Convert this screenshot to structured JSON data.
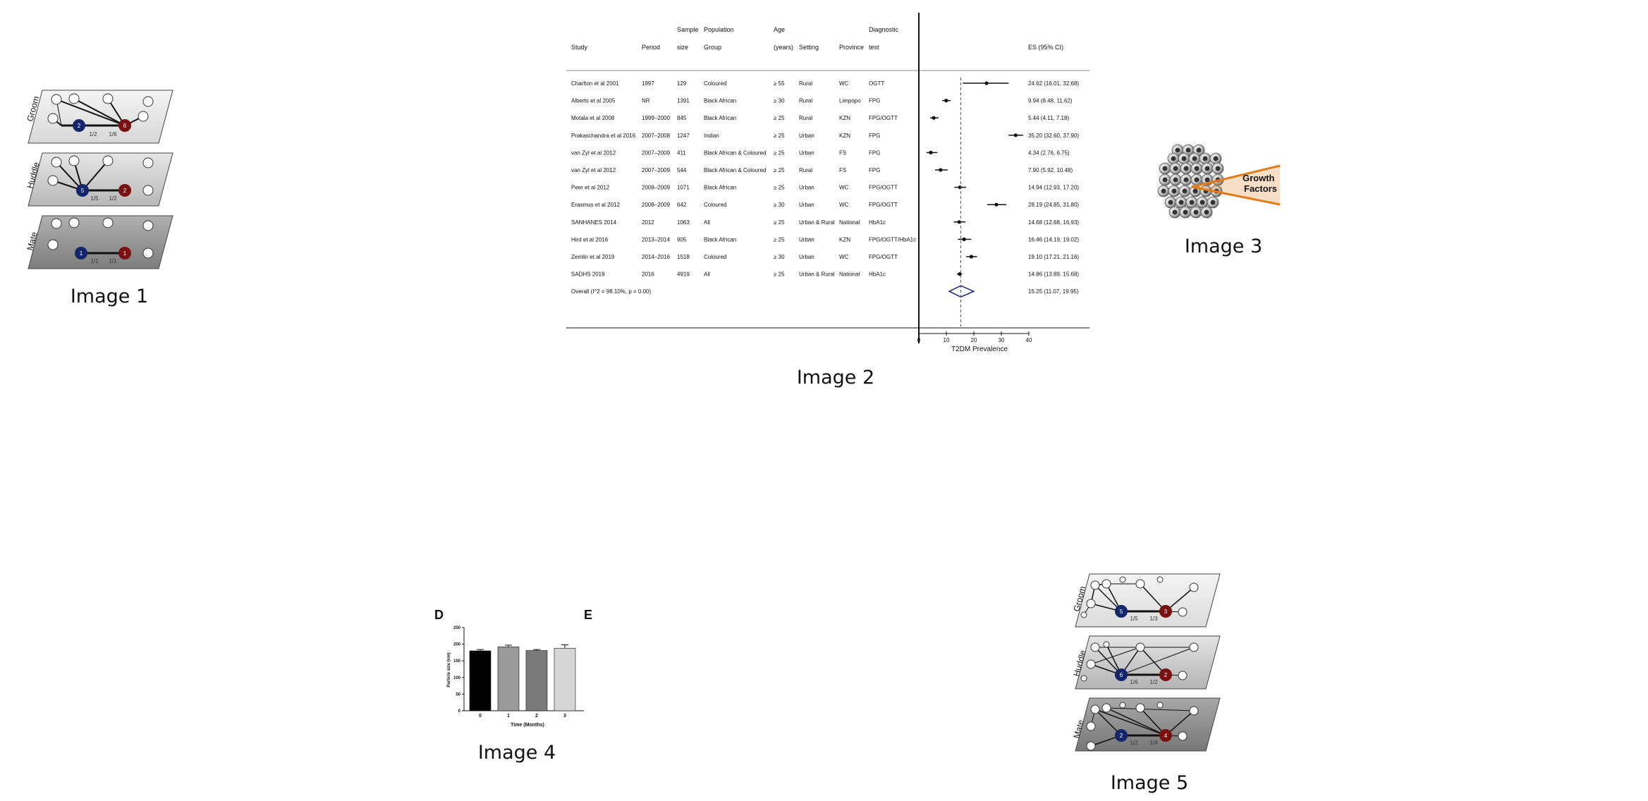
{
  "captions": [
    "Image 1",
    "Image 2",
    "Image 3",
    "Image 4",
    "Image 5"
  ],
  "image1": {
    "layers": [
      {
        "label": "Groom",
        "blue": "2",
        "red": "6",
        "blue_frac": "1/2",
        "red_frac": "1/6"
      },
      {
        "label": "Huddle",
        "blue": "5",
        "red": "2",
        "blue_frac": "1/5",
        "red_frac": "1/2"
      },
      {
        "label": "Mate",
        "blue": "1",
        "red": "1",
        "blue_frac": "1/1",
        "red_frac": "1/1"
      }
    ]
  },
  "forest": {
    "headers": {
      "study": "Study",
      "period": "Period",
      "sample_1": "Sample",
      "sample_2": "size",
      "pop_1": "Population",
      "pop_2": "Group",
      "age_1": "Age",
      "age_2": "(years)",
      "setting": "Setting",
      "province": "Province",
      "diag_1": "Diagnostic",
      "diag_2": "test",
      "es": "ES (95% CI)"
    },
    "rows": [
      {
        "study": "Charlton et al 2001",
        "period": "1997",
        "size": "129",
        "group": "Coloured",
        "age": "≥ 55",
        "setting": "Rural",
        "province": "WC",
        "test": "OGTT",
        "es": "24.62 (16.01, 32.68)",
        "est": 24.62,
        "lo": 16.01,
        "hi": 32.68
      },
      {
        "study": "Alberts et al 2005",
        "period": "NR",
        "size": "1391",
        "group": "Black African",
        "age": "≥ 30",
        "setting": "Rural",
        "province": "Limpopo",
        "test": "FPG",
        "es": "9.94 (8.48, 11.62)",
        "est": 9.94,
        "lo": 8.48,
        "hi": 11.62
      },
      {
        "study": "Motala et al 2008",
        "period": "1999–2000",
        "size": "845",
        "group": "Black African",
        "age": "≥ 25",
        "setting": "Rural",
        "province": "KZN",
        "test": "FPG/OGTT",
        "es": "5.44 (4.11, 7.18)",
        "est": 5.44,
        "lo": 4.11,
        "hi": 7.18
      },
      {
        "study": "Prakaschandra et al 2016",
        "period": "2007–2008",
        "size": "1247",
        "group": "Indian",
        "age": "≥ 25",
        "setting": "Urban",
        "province": "KZN",
        "test": "FPG",
        "es": "35.20 (32.60, 37.90)",
        "est": 35.2,
        "lo": 32.6,
        "hi": 37.9
      },
      {
        "study": "van Zyl et al 2012",
        "period": "2007–2009",
        "size": "411",
        "group": "Black African & Coloured",
        "age": "≥ 25",
        "setting": "Urban",
        "province": "FS",
        "test": "FPG",
        "es": "4.34 (2.76, 6.75)",
        "est": 4.34,
        "lo": 2.76,
        "hi": 6.75
      },
      {
        "study": "van Zyl et al 2012",
        "period": "2007–2009",
        "size": "544",
        "group": "Black African & Coloured",
        "age": "≥ 25",
        "setting": "Rural",
        "province": "FS",
        "test": "FPG",
        "es": "7.90 (5.92, 10.48)",
        "est": 7.9,
        "lo": 5.92,
        "hi": 10.48
      },
      {
        "study": "Peer et al 2012",
        "period": "2008–2009",
        "size": "1071",
        "group": "Black African",
        "age": "≥ 25",
        "setting": "Urban",
        "province": "WC",
        "test": "FPG/OGTT",
        "es": "14.94 (12.93, 17.20)",
        "est": 14.94,
        "lo": 12.93,
        "hi": 17.2
      },
      {
        "study": "Erasmus et al 2012",
        "period": "2008–2009",
        "size": "642",
        "group": "Coloured",
        "age": "≥ 30",
        "setting": "Urban",
        "province": "WC",
        "test": "FPG/OGTT",
        "es": "28.19 (24.85, 31.80)",
        "est": 28.19,
        "lo": 24.85,
        "hi": 31.8
      },
      {
        "study": "SANHANES 2014",
        "period": "2012",
        "size": "1063",
        "group": "All",
        "age": "≥ 25",
        "setting": "Urban & Rural",
        "province": "National",
        "test": "HbA1c",
        "es": "14.68 (12.68, 16.93)",
        "est": 14.68,
        "lo": 12.68,
        "hi": 16.93
      },
      {
        "study": "Hird et al 2016",
        "period": "2013–2014",
        "size": "905",
        "group": "Black African",
        "age": "≥ 25",
        "setting": "Urban",
        "province": "KZN",
        "test": "FPG/OGTT/HbA1c",
        "es": "16.46 (14.19, 19.02)",
        "est": 16.46,
        "lo": 14.19,
        "hi": 19.02
      },
      {
        "study": "Zemlin et al 2019",
        "period": "2014–2016",
        "size": "1518",
        "group": "Coloured",
        "age": "≥ 30",
        "setting": "Urban",
        "province": "WC",
        "test": "FPG/OGTT",
        "es": "19.10 (17.21, 21.16)",
        "est": 19.1,
        "lo": 17.21,
        "hi": 21.16
      },
      {
        "study": "SADHS 2019",
        "period": "2016",
        "size": "4919",
        "group": "All",
        "age": "≥ 25",
        "setting": "Urban & Rural",
        "province": "National",
        "test": "HbA1c",
        "es": "14.86 (13.89, 15.68)",
        "est": 14.86,
        "lo": 13.89,
        "hi": 15.68
      }
    ],
    "overall": {
      "label": "Overall  (I^2 = 98.10%, p = 0.00)",
      "es": "15.25 (11.07, 19.95)",
      "est": 15.25,
      "lo": 11.07,
      "hi": 19.95
    },
    "xticks": [
      0,
      10,
      20,
      30,
      40
    ],
    "xlabel": "T2DM Prevalence"
  },
  "image3": {
    "label_1": "Growth",
    "label_2": "Factors",
    "accent": "#e07b1a"
  },
  "chart_data": {
    "type": "bar",
    "categories": [
      "0",
      "1",
      "2",
      "3"
    ],
    "values": [
      180,
      192,
      181,
      188
    ],
    "errors": [
      4,
      5,
      3,
      10
    ],
    "colors": [
      "#000000",
      "#9a9a9a",
      "#7a7a7a",
      "#d6d6d6"
    ],
    "ylabel": "Particle size (nm)",
    "xlabel": "Time (Months)",
    "ylim": [
      0,
      250
    ],
    "yticks": [
      0,
      50,
      100,
      150,
      200,
      250
    ],
    "panel_left": "D",
    "panel_right": "E"
  },
  "image5": {
    "layers": [
      {
        "label": "Groom",
        "blue": "5",
        "red": "3",
        "blue_frac": "1/5",
        "red_frac": "1/3"
      },
      {
        "label": "Huddle",
        "blue": "6",
        "red": "2",
        "blue_frac": "1/6",
        "red_frac": "1/2"
      },
      {
        "label": "Mate",
        "blue": "2",
        "red": "4",
        "blue_frac": "1/2",
        "red_frac": "1/4"
      }
    ]
  }
}
